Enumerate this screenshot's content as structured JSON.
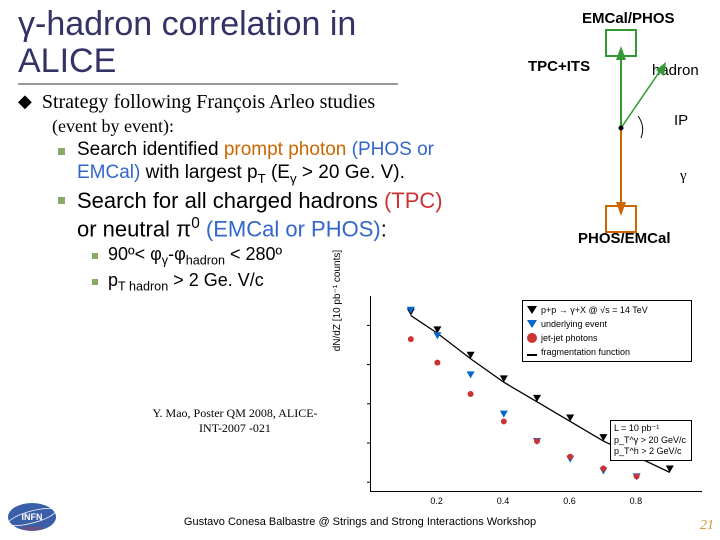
{
  "title_line": "γ-hadron correlation in ALICE",
  "bullet1": {
    "text": "Strategy following François Arleo studies",
    "sub": "(event by event):"
  },
  "bullet2a": {
    "prefix": "Search identified ",
    "orange": "prompt photon ",
    "blue": "(PHOS or EMCal)",
    "rest": " with largest p",
    "sub1": "T",
    "rest2": " (E",
    "sub2": "γ",
    "rest3": " > 20 Ge. V)."
  },
  "bullet2b": {
    "prefix": "Search  for all charged hadrons ",
    "blue": "(TPC)",
    "mid": " or neutral π",
    "sup": "0",
    "blue2": " (EMCal or PHOS)",
    "tail": ":"
  },
  "bullet3a": {
    "a": "90º< φ",
    "sub1": "γ",
    "b": "-φ",
    "sub2": "hadron",
    "c": " < 280º"
  },
  "bullet3b": {
    "a": "p",
    "sub": "T hadron",
    "b": " > 2 Ge. V/c"
  },
  "reference": "Y. Mao, Poster QM 2008, ALICE-INT-2007 -021",
  "footer": "Gustavo Conesa Balbastre @ Strings and Strong Interactions Workshop",
  "pagenum": "21",
  "diagram": {
    "top": "EMCal/PHOS",
    "left": "TPC+ITS",
    "right": "hadron",
    "ip": "IP",
    "gamma": "γ",
    "bottom": "PHOS/EMCal",
    "arrow_up_color": "#339933",
    "arrow_down_color": "#cc6600"
  },
  "chart": {
    "ylabel": "dN/dZ [10 pb⁻¹ counts]",
    "xticks": [
      "0.2",
      "0.4",
      "0.6",
      "0.8"
    ],
    "yticks_pos": [
      0.05,
      0.25,
      0.45,
      0.65,
      0.85
    ],
    "legend": [
      {
        "label": "p+p → γ+X @ √s = 14 TeV",
        "color": "#000000",
        "shape": "tri"
      },
      {
        "label": "underlying event",
        "color": "#0066cc",
        "shape": "tri"
      },
      {
        "label": "jet-jet photons",
        "color": "#cc3333",
        "shape": "circ"
      },
      {
        "label": "fragmentation function",
        "color": "#000000",
        "shape": "line"
      }
    ],
    "info": [
      "L = 10 pb⁻¹",
      "p_T^γ > 20 GeV/c",
      "p_T^h > 2 GeV/c"
    ],
    "series_black": [
      [
        0.12,
        0.92
      ],
      [
        0.2,
        0.83
      ],
      [
        0.3,
        0.7
      ],
      [
        0.4,
        0.58
      ],
      [
        0.5,
        0.48
      ],
      [
        0.6,
        0.38
      ],
      [
        0.7,
        0.28
      ],
      [
        0.8,
        0.2
      ],
      [
        0.9,
        0.12
      ]
    ],
    "series_blue": [
      [
        0.12,
        0.93
      ],
      [
        0.2,
        0.8
      ],
      [
        0.3,
        0.6
      ],
      [
        0.4,
        0.4
      ],
      [
        0.5,
        0.26
      ],
      [
        0.6,
        0.17
      ],
      [
        0.7,
        0.11
      ],
      [
        0.8,
        0.08
      ]
    ],
    "series_red": [
      [
        0.12,
        0.78
      ],
      [
        0.2,
        0.66
      ],
      [
        0.3,
        0.5
      ],
      [
        0.4,
        0.36
      ],
      [
        0.5,
        0.26
      ],
      [
        0.6,
        0.18
      ],
      [
        0.7,
        0.12
      ],
      [
        0.8,
        0.08
      ]
    ],
    "colors": {
      "black": "#000000",
      "blue": "#0066cc",
      "red": "#cc3333"
    }
  }
}
